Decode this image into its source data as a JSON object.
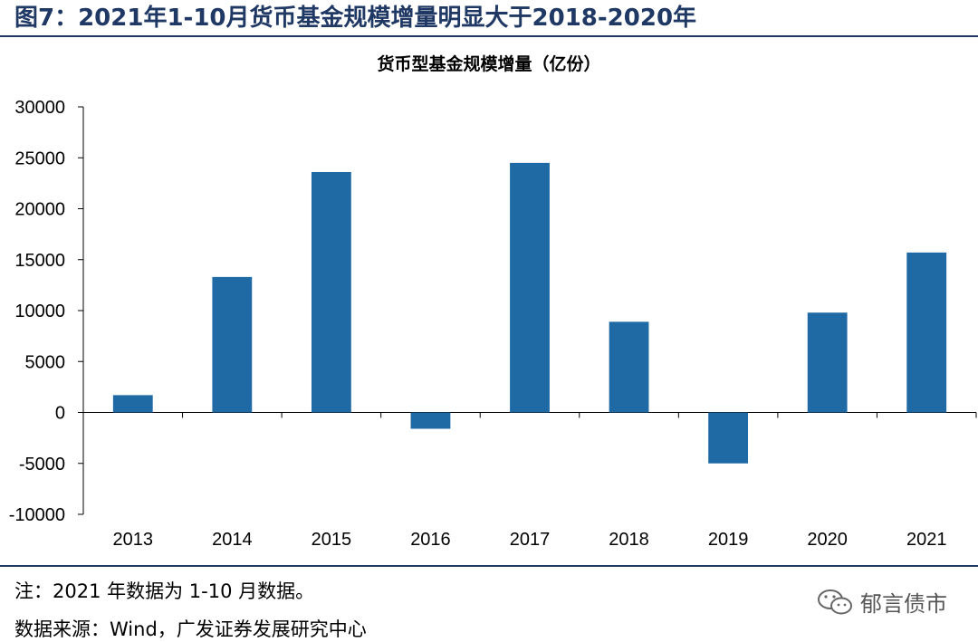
{
  "figure": {
    "title": "图7：2021年1-10月货币基金规模增量明显大于2018-2020年",
    "note": "注：2021 年数据为 1-10 月数据。",
    "source": "数据来源：Wind，广发证券发展研究中心",
    "watermark": "郁言债市"
  },
  "colors": {
    "bar": "#1f6aa5",
    "accent": "#1f3864",
    "axis": "#000000"
  },
  "chart_data": {
    "type": "bar",
    "title": "货币型基金规模增量（亿份）",
    "xlabel": "",
    "ylabel": "",
    "categories": [
      "2013",
      "2014",
      "2015",
      "2016",
      "2017",
      "2018",
      "2019",
      "2020",
      "2021"
    ],
    "values": [
      1700,
      13300,
      23600,
      -1600,
      24500,
      8900,
      -5000,
      9800,
      15700
    ],
    "ylim": [
      -10000,
      30000
    ],
    "yticks": [
      30000,
      25000,
      20000,
      15000,
      10000,
      5000,
      0,
      -5000,
      -10000
    ],
    "grid": false,
    "legend": "none"
  }
}
